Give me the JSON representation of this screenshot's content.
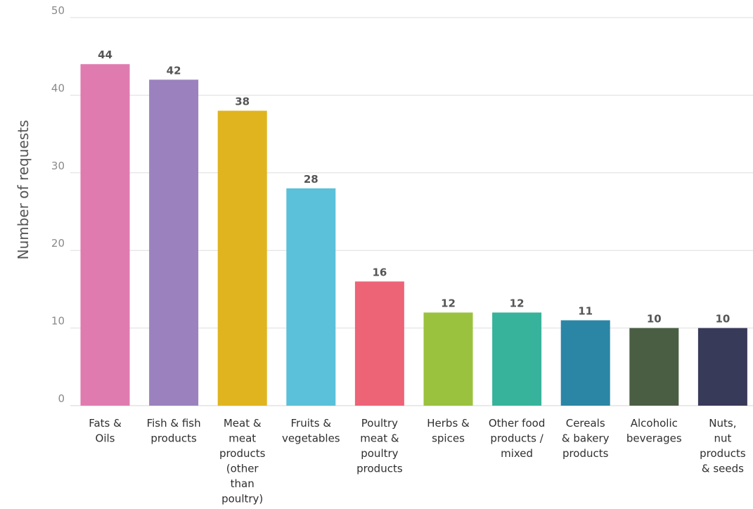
{
  "chart_data": {
    "type": "bar",
    "title": "",
    "xlabel": "",
    "ylabel": "Number of requests",
    "ylim": [
      0,
      50
    ],
    "yticks": [
      0,
      10,
      20,
      30,
      40,
      50
    ],
    "grid": true,
    "categories": [
      [
        "Fats &",
        "Oils"
      ],
      [
        "Fish & fish",
        "products"
      ],
      [
        "Meat &",
        "meat",
        "products",
        "(other",
        "than",
        "poultry)"
      ],
      [
        "Fruits &",
        "vegetables"
      ],
      [
        "Poultry",
        "meat &",
        "poultry",
        "products"
      ],
      [
        "Herbs &",
        "spices"
      ],
      [
        "Other food",
        "products /",
        "mixed"
      ],
      [
        "Cereals",
        "& bakery",
        "products"
      ],
      [
        "Alcoholic",
        "beverages"
      ],
      [
        "Nuts,",
        "nut",
        "products",
        "& seeds"
      ]
    ],
    "values": [
      44,
      42,
      38,
      28,
      16,
      12,
      12,
      11,
      10,
      10
    ],
    "colors": [
      "#e07bb0",
      "#9b82be",
      "#e0b41e",
      "#5bc0da",
      "#ed6477",
      "#9bc23e",
      "#37b39b",
      "#2b86a6",
      "#4a5e43",
      "#383a5a"
    ]
  }
}
